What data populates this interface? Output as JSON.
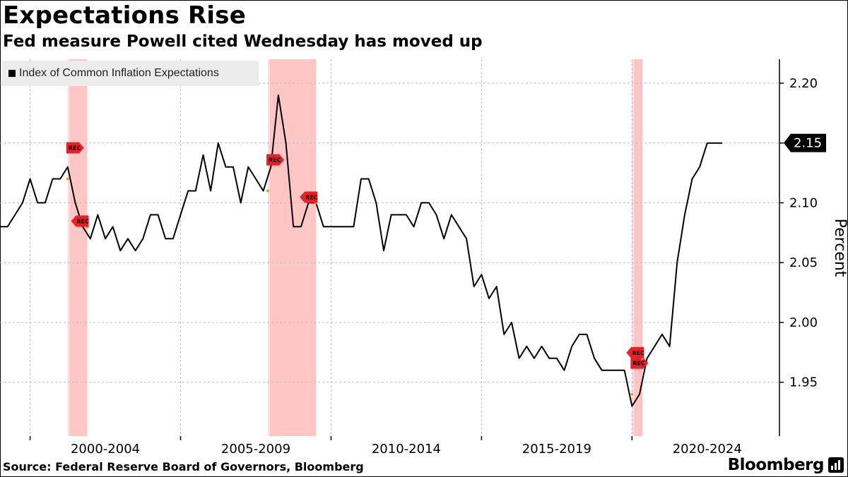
{
  "title": "Expectations Rise",
  "subtitle": "Fed measure Powell cited Wednesday has moved up",
  "source": "Source: Federal Reserve Board of Governors, Bloomberg",
  "brand": "Bloomberg",
  "colors": {
    "line": "#000000",
    "recession_band": "#ffb3b3",
    "grid": "#bbbbbb",
    "rec_marker": "#e8202a",
    "last_label_bg": "#000000"
  },
  "chart_data": {
    "type": "line",
    "title": "Expectations Rise",
    "subtitle": "Fed measure Powell cited Wednesday has moved up",
    "ylabel": "Percent",
    "xlabel": "",
    "ylim": [
      1.905,
      2.22
    ],
    "yticks": [
      1.95,
      2.0,
      2.05,
      2.1,
      2.15,
      2.2
    ],
    "ytick_labels": [
      "1.95",
      "2.00",
      "2.05",
      "2.10",
      "",
      "2.20"
    ],
    "xlim": [
      1999.0,
      2024.9
    ],
    "xtick_labels": [
      "2000-2004",
      "2005-2009",
      "2010-2014",
      "2015-2019",
      "2020-2024"
    ],
    "xtick_centers": [
      2002.5,
      2007.5,
      2012.5,
      2017.5,
      2022.5
    ],
    "year_grid": [
      2000,
      2005,
      2010,
      2015,
      2020
    ],
    "legend": "top-left",
    "grid": true,
    "series": [
      {
        "name": "Index of Common Inflation Expectations",
        "last_value_label": "2.15",
        "x": [
          1999.0,
          1999.25,
          1999.5,
          1999.75,
          2000.0,
          2000.25,
          2000.5,
          2000.75,
          2001.0,
          2001.25,
          2001.5,
          2001.75,
          2002.0,
          2002.25,
          2002.5,
          2002.75,
          2003.0,
          2003.25,
          2003.5,
          2003.75,
          2004.0,
          2004.25,
          2004.5,
          2004.75,
          2005.0,
          2005.25,
          2005.5,
          2005.75,
          2006.0,
          2006.25,
          2006.5,
          2006.75,
          2007.0,
          2007.25,
          2007.5,
          2007.75,
          2008.0,
          2008.25,
          2008.5,
          2008.75,
          2009.0,
          2009.25,
          2009.5,
          2009.75,
          2010.0,
          2010.25,
          2010.5,
          2010.75,
          2011.0,
          2011.25,
          2011.5,
          2011.75,
          2012.0,
          2012.25,
          2012.5,
          2012.75,
          2013.0,
          2013.25,
          2013.5,
          2013.75,
          2014.0,
          2014.25,
          2014.5,
          2014.75,
          2015.0,
          2015.25,
          2015.5,
          2015.75,
          2016.0,
          2016.25,
          2016.5,
          2016.75,
          2017.0,
          2017.25,
          2017.5,
          2017.75,
          2018.0,
          2018.25,
          2018.5,
          2018.75,
          2019.0,
          2019.25,
          2019.5,
          2019.75,
          2020.0,
          2020.25,
          2020.5,
          2020.75,
          2021.0,
          2021.25,
          2021.5,
          2021.75,
          2022.0,
          2022.25,
          2022.5,
          2022.75,
          2023.0
        ],
        "values": [
          2.08,
          2.08,
          2.09,
          2.1,
          2.12,
          2.1,
          2.1,
          2.12,
          2.12,
          2.13,
          2.1,
          2.08,
          2.07,
          2.09,
          2.07,
          2.08,
          2.06,
          2.07,
          2.06,
          2.07,
          2.09,
          2.09,
          2.07,
          2.07,
          2.09,
          2.11,
          2.11,
          2.14,
          2.11,
          2.15,
          2.13,
          2.13,
          2.1,
          2.13,
          2.12,
          2.11,
          2.13,
          2.19,
          2.15,
          2.08,
          2.08,
          2.1,
          2.1,
          2.08,
          2.08,
          2.08,
          2.08,
          2.08,
          2.12,
          2.12,
          2.1,
          2.06,
          2.09,
          2.09,
          2.09,
          2.08,
          2.1,
          2.1,
          2.09,
          2.07,
          2.09,
          2.08,
          2.07,
          2.03,
          2.04,
          2.02,
          2.03,
          1.99,
          2.0,
          1.97,
          1.98,
          1.97,
          1.98,
          1.97,
          1.97,
          1.96,
          1.98,
          1.99,
          1.99,
          1.97,
          1.96,
          1.96,
          1.96,
          1.96,
          1.93,
          1.94,
          1.97,
          1.98,
          1.99,
          1.98,
          2.05,
          2.09,
          2.12,
          2.13,
          2.15,
          2.15,
          2.15
        ]
      }
    ],
    "recessions": [
      {
        "start": 2001.25,
        "end": 2001.9
      },
      {
        "start": 2007.9,
        "end": 2009.5
      },
      {
        "start": 2020.0,
        "end": 2020.35
      }
    ],
    "rec_label": "REC",
    "rec_markers": [
      {
        "x": 2001.25,
        "y": 2.12,
        "dir": "right"
      },
      {
        "x": 2001.9,
        "y": 2.08,
        "dir": "left"
      },
      {
        "x": 2007.9,
        "y": 2.11,
        "dir": "right"
      },
      {
        "x": 2009.5,
        "y": 2.1,
        "dir": "left"
      },
      {
        "x": 2020.0,
        "y": 1.94,
        "dir": "right"
      },
      {
        "x": 2020.35,
        "y": 1.97,
        "dir": "left"
      }
    ]
  }
}
